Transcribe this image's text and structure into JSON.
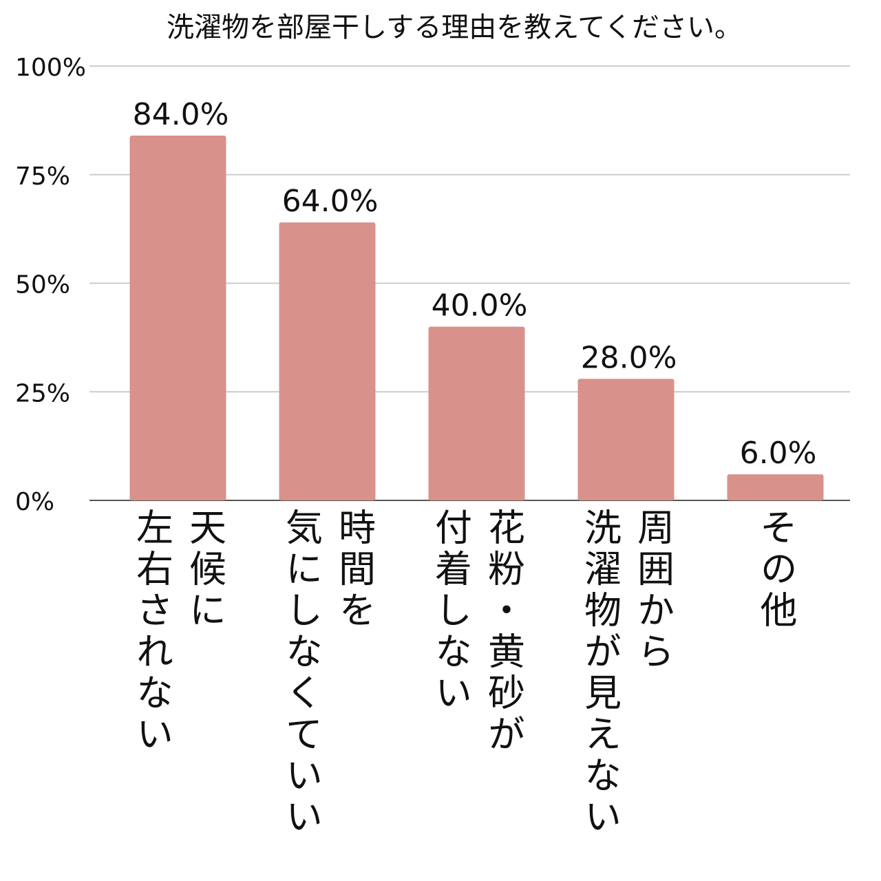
{
  "chart_data": {
    "type": "bar",
    "title": "洗濯物を部屋干しする理由を教えてください。",
    "categories": [
      "天候に\n左右されない",
      "時間を\n気にしなくていい",
      "花粉・黄砂が\n付着しない",
      "周囲から\n洗濯物が見えない",
      "その他"
    ],
    "values": [
      84,
      64,
      40,
      28,
      6
    ],
    "value_labels": [
      "84.0%",
      "64.0%",
      "40.0%",
      "28.0%",
      "6.0%"
    ],
    "color": "#d9918c",
    "ylim": [
      0,
      100
    ],
    "yticks": [
      {
        "value": 0,
        "label": "0%"
      },
      {
        "value": 25,
        "label": "25%"
      },
      {
        "value": 50,
        "label": "50%"
      },
      {
        "value": 75,
        "label": "75%"
      },
      {
        "value": 100,
        "label": "100%"
      }
    ],
    "grid": true
  }
}
